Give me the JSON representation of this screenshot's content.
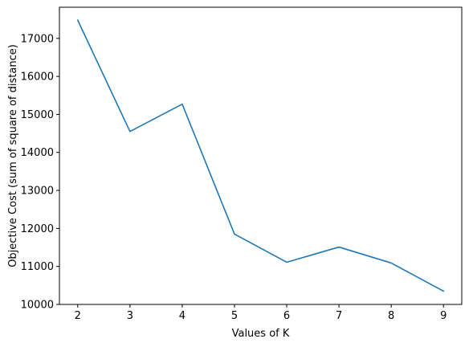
{
  "chart_data": {
    "type": "line",
    "title": "",
    "xlabel": "Values of K",
    "ylabel": "Objective Cost (sum of square of distance)",
    "x": [
      2,
      3,
      4,
      5,
      6,
      7,
      8,
      9
    ],
    "series": [
      {
        "values": [
          17480,
          14550,
          15270,
          11850,
          11110,
          11510,
          11090,
          10350
        ],
        "color": "#1f77b4"
      }
    ],
    "xticks": [
      2,
      3,
      4,
      5,
      6,
      7,
      8,
      9
    ],
    "xtick_labels": [
      "2",
      "3",
      "4",
      "5",
      "6",
      "7",
      "8",
      "9"
    ],
    "yticks": [
      10000,
      11000,
      12000,
      13000,
      14000,
      15000,
      16000,
      17000
    ],
    "ytick_labels": [
      "10000",
      "11000",
      "12000",
      "13000",
      "14000",
      "15000",
      "16000",
      "17000"
    ],
    "xlim": [
      1.65,
      9.35
    ],
    "ylim": [
      10000,
      17820
    ],
    "grid": false,
    "legend": false
  }
}
